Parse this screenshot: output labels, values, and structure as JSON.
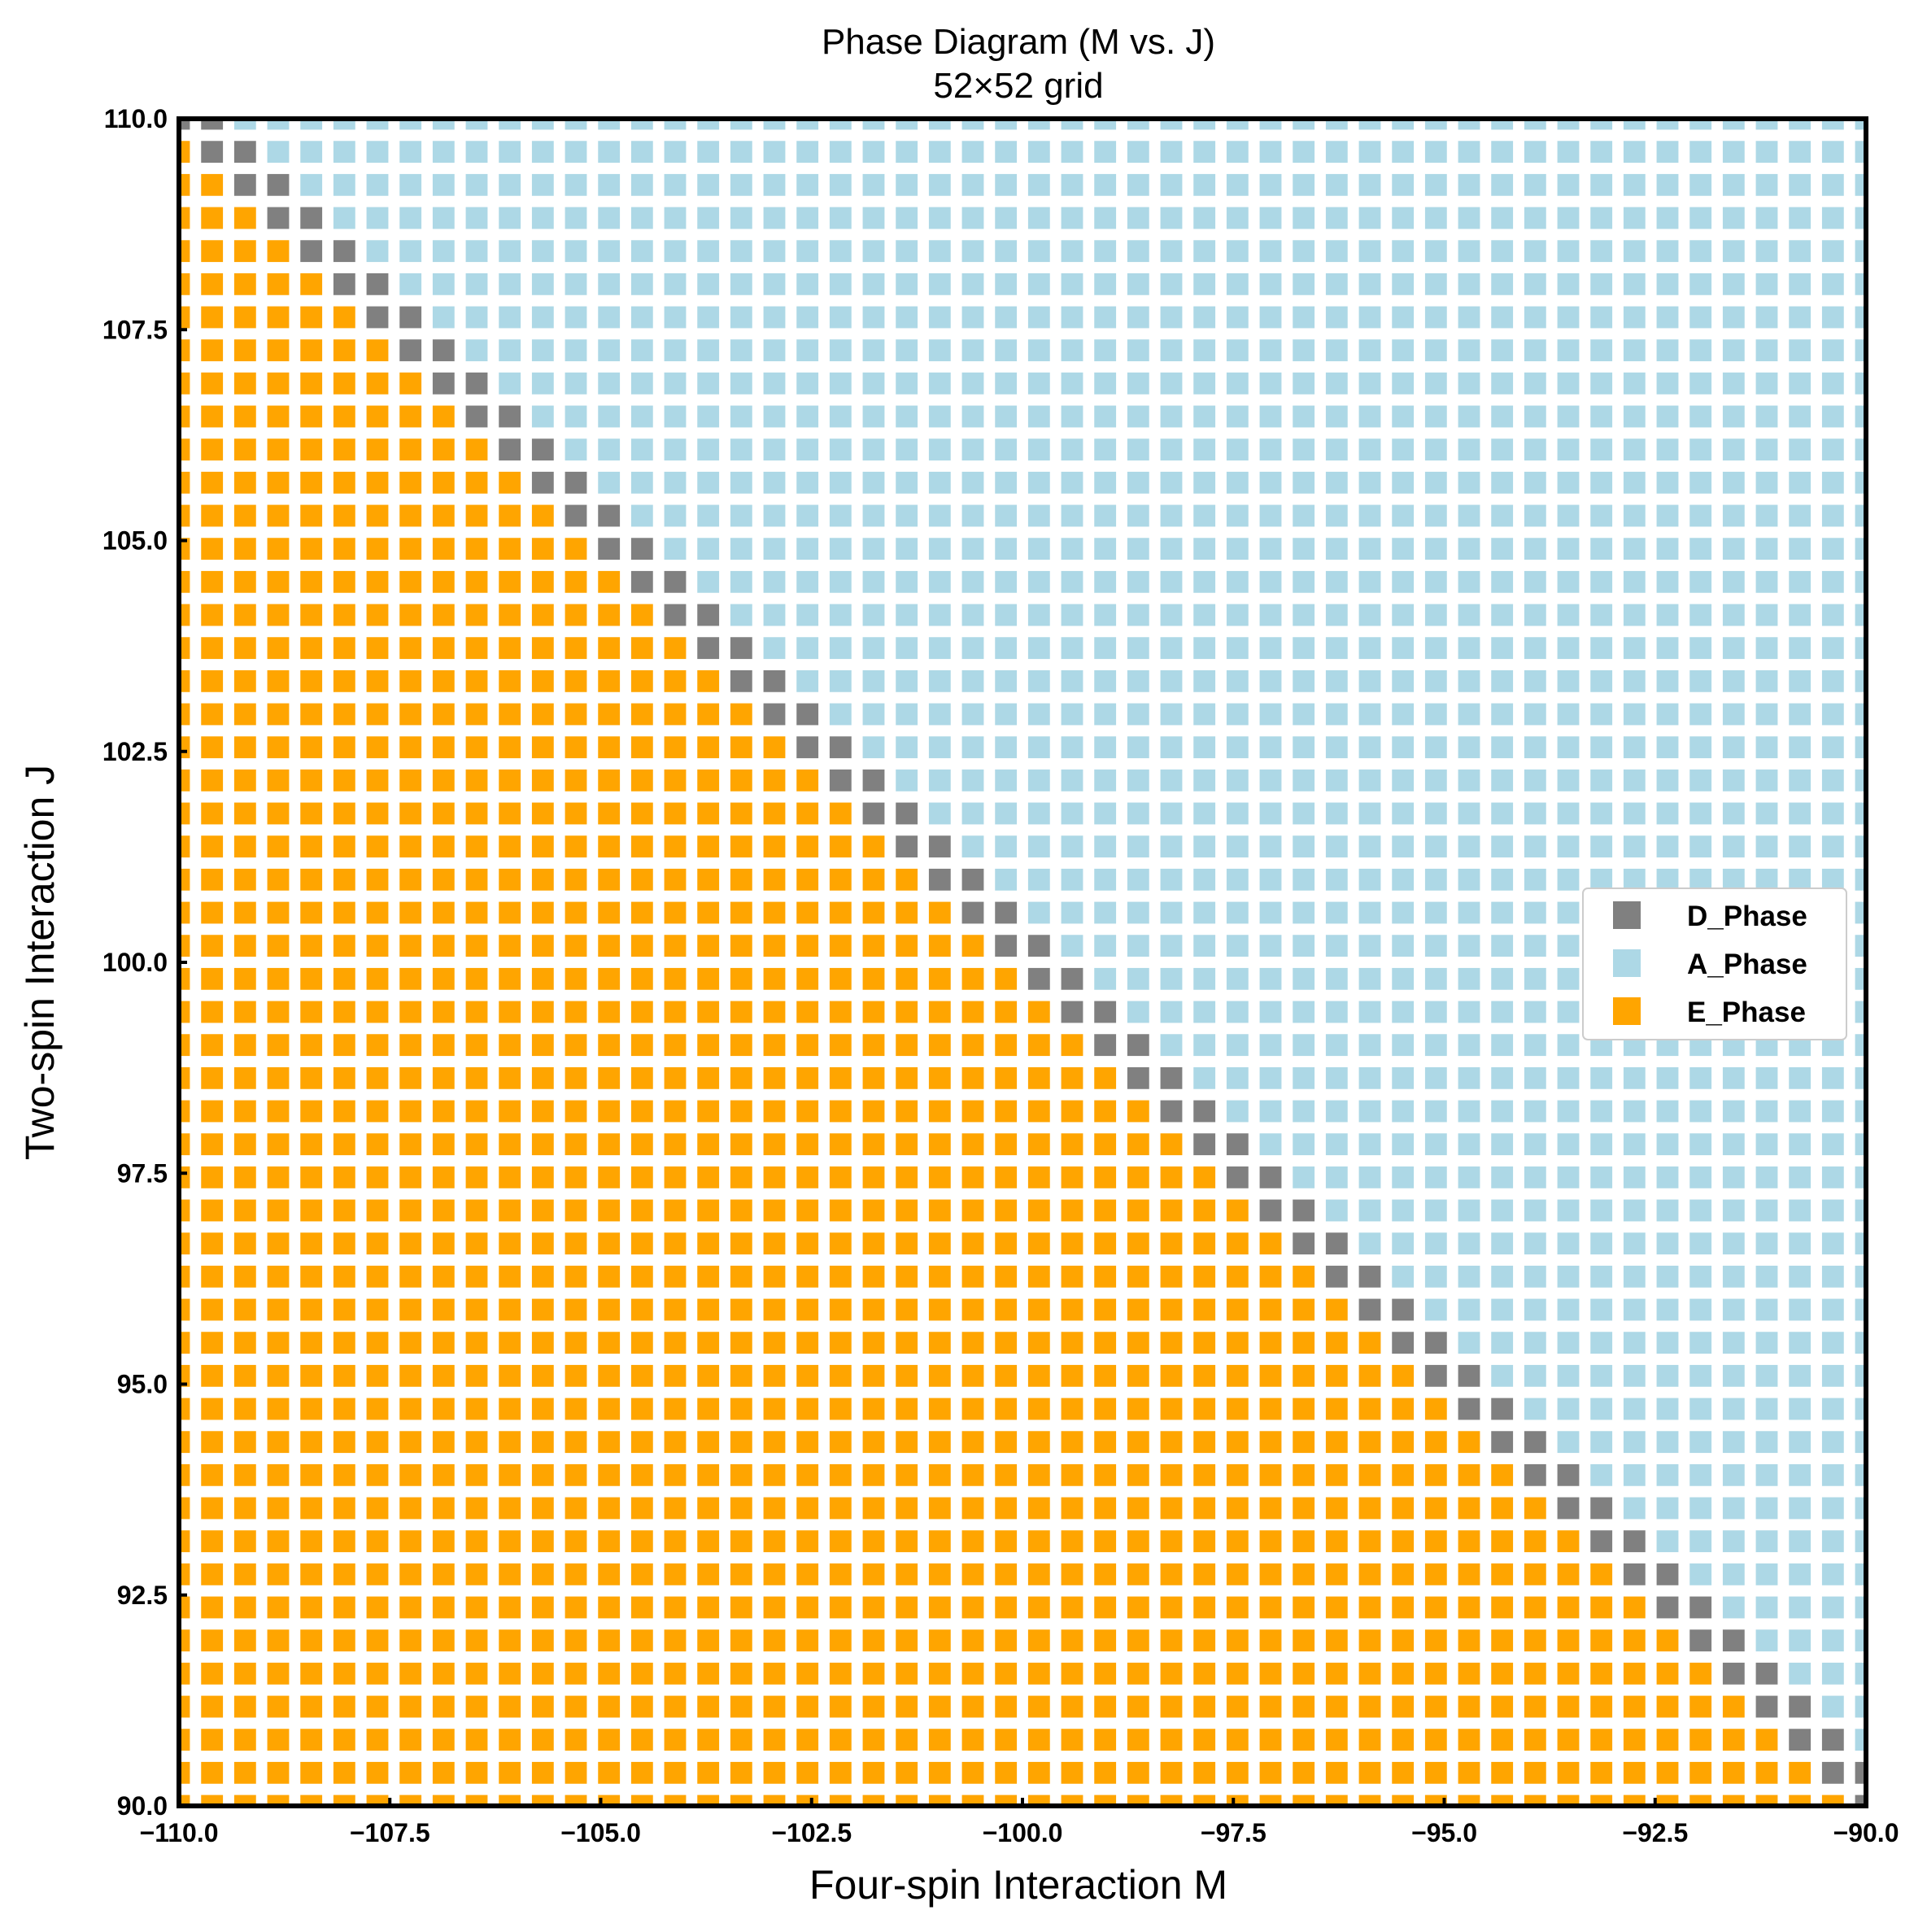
{
  "chart_data": {
    "type": "heatmap",
    "title": "Phase Diagram (M vs. J)",
    "subtitle": "52×52 grid",
    "xlabel": "Four-spin Interaction M",
    "ylabel": "Two-spin Interaction J",
    "xlim": [
      -110.0,
      -90.0
    ],
    "ylim": [
      90.0,
      110.0
    ],
    "grid_size": 52,
    "xticks": [
      {
        "value": -110.0,
        "label": "−110.0"
      },
      {
        "value": -107.5,
        "label": "−107.5"
      },
      {
        "value": -105.0,
        "label": "−105.0"
      },
      {
        "value": -102.5,
        "label": "−102.5"
      },
      {
        "value": -100.0,
        "label": "−100.0"
      },
      {
        "value": -97.5,
        "label": "−97.5"
      },
      {
        "value": -95.0,
        "label": "−95.0"
      },
      {
        "value": -92.5,
        "label": "−92.5"
      },
      {
        "value": -90.0,
        "label": "−90.0"
      }
    ],
    "yticks": [
      {
        "value": 90.0,
        "label": "90.0"
      },
      {
        "value": 92.5,
        "label": "92.5"
      },
      {
        "value": 95.0,
        "label": "95.0"
      },
      {
        "value": 97.5,
        "label": "97.5"
      },
      {
        "value": 100.0,
        "label": "100.0"
      },
      {
        "value": 102.5,
        "label": "102.5"
      },
      {
        "value": 105.0,
        "label": "105.0"
      },
      {
        "value": 107.5,
        "label": "107.5"
      },
      {
        "value": 110.0,
        "label": "110.0"
      }
    ],
    "phases": [
      {
        "name": "D_Phase",
        "color": "#808080",
        "rule": "boundary where J is approximately -M (within one grid step)"
      },
      {
        "name": "A_Phase",
        "color": "#add8e6",
        "rule": "J greater than -M"
      },
      {
        "name": "E_Phase",
        "color": "#ffa500",
        "rule": "J less than -M"
      }
    ],
    "legend_position": "center-right"
  }
}
